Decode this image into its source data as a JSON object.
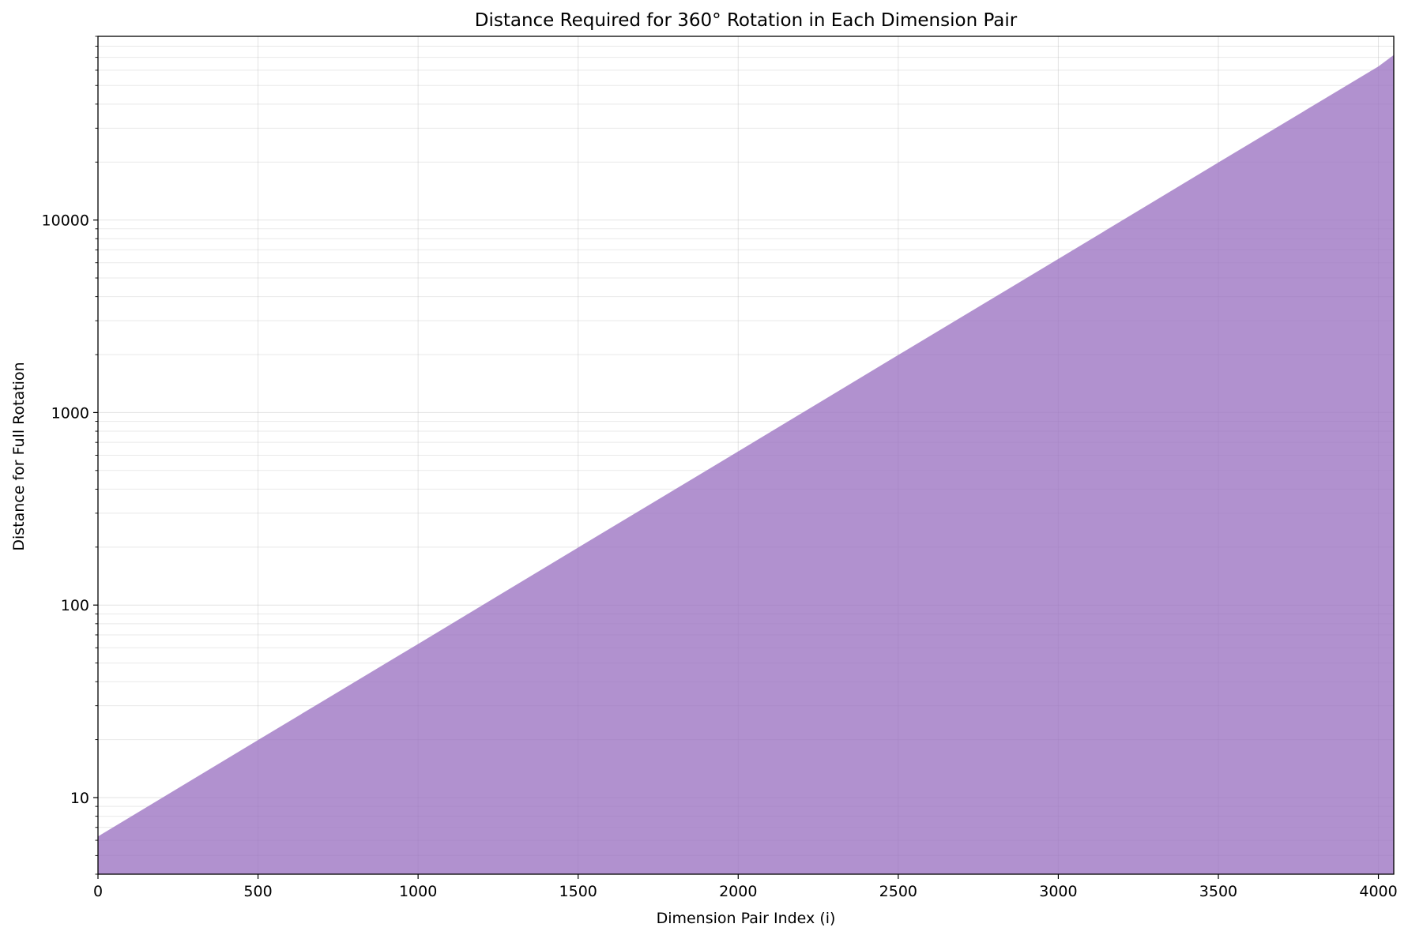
{
  "chart_data": {
    "type": "area",
    "title": "Distance Required for 360° Rotation in Each Dimension Pair",
    "xlabel": "Dimension Pair Index (i)",
    "ylabel": "Distance for Full Rotation",
    "xlim": [
      0,
      4048
    ],
    "ylim": [
      4,
      90000
    ],
    "yscale": "log",
    "grid": true,
    "x_ticks": [
      0,
      500,
      1000,
      1500,
      2000,
      2500,
      3000,
      3500,
      4000
    ],
    "y_ticks": [
      10,
      100,
      1000,
      10000
    ],
    "series": [
      {
        "x": [
          0,
          500,
          1000,
          1500,
          2000,
          2500,
          3000,
          3500,
          4000,
          4048
        ],
        "values": [
          6.28,
          19.9,
          62.8,
          199,
          628,
          1990,
          6280,
          19900,
          62800,
          72000
        ]
      }
    ],
    "fill_color": "#9b72c1",
    "fill_opacity": 0.78
  }
}
